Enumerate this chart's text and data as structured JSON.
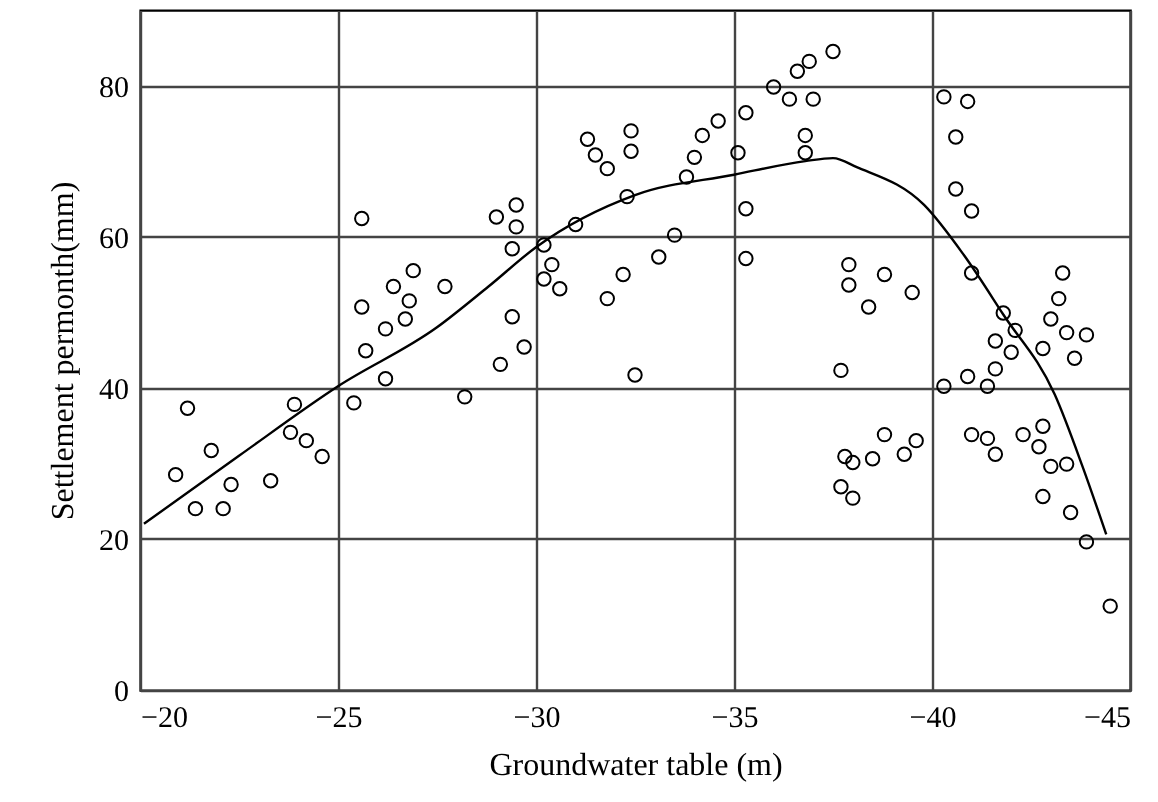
{
  "chart_data": {
    "type": "scatter",
    "xlabel": "Groundwater table (m)",
    "ylabel": "Settlement permonth(mm)",
    "xlim": [
      -20,
      -45
    ],
    "xticks": [
      -20,
      -25,
      -30,
      -35,
      -40,
      -45
    ],
    "ylim": [
      0,
      90
    ],
    "yticks": [
      0,
      20,
      40,
      60,
      80
    ],
    "grid": true,
    "series": [
      {
        "color": "#000000",
        "marker": "circle",
        "x": [
          -20.9,
          -21.2,
          -21.8,
          -21.4,
          -22.1,
          -22.3,
          -23.3,
          -23.9,
          -23.8,
          -24.2,
          -24.6,
          -25.4,
          -25.6,
          -25.6,
          -25.7,
          -26.2,
          -26.2,
          -26.4,
          -26.7,
          -26.8,
          -26.9,
          -27.7,
          -28.2,
          -29.1,
          -29.7,
          -29.4,
          -29.0,
          -29.5,
          -29.5,
          -29.4,
          -30.2,
          -30.4,
          -30.2,
          -30.6,
          -31.0,
          -31.3,
          -31.5,
          -31.8,
          -32.4,
          -32.4,
          -32.3,
          -31.8,
          -32.2,
          -32.5,
          -33.1,
          -33.5,
          -33.8,
          -34.0,
          -34.2,
          -34.6,
          -35.3,
          -35.1,
          -35.3,
          -35.3,
          -36.0,
          -36.4,
          -36.6,
          -36.8,
          -36.8,
          -36.9,
          -37.5,
          -37.0,
          -37.9,
          -37.9,
          -38.8,
          -39.5,
          -38.4,
          -37.7,
          -37.8,
          -38.0,
          -38.5,
          -38.8,
          -39.3,
          -39.6,
          -37.7,
          -38.0,
          -40.3,
          -40.9,
          -40.6,
          -40.6,
          -41.0,
          -41.0,
          -41.8,
          -42.1,
          -41.6,
          -42.0,
          -41.6,
          -40.9,
          -41.4,
          -40.3,
          -43.3,
          -43.2,
          -43.0,
          -43.4,
          -43.9,
          -42.8,
          -43.6,
          -41.0,
          -41.4,
          -41.6,
          -42.3,
          -42.8,
          -42.7,
          -43.0,
          -43.4,
          -42.8,
          -43.5,
          -43.9,
          -44.5
        ],
        "values": [
          28.5,
          37.3,
          31.7,
          24.0,
          24.0,
          27.2,
          27.7,
          37.8,
          34.1,
          33.0,
          30.9,
          38.0,
          62.4,
          50.7,
          44.9,
          41.2,
          47.8,
          53.4,
          49.1,
          51.5,
          55.5,
          53.4,
          38.8,
          43.1,
          45.4,
          49.4,
          62.6,
          64.2,
          61.3,
          58.4,
          58.9,
          56.3,
          54.4,
          53.1,
          61.6,
          72.9,
          70.8,
          69.0,
          74.0,
          71.3,
          65.3,
          51.8,
          55.0,
          41.7,
          57.3,
          60.2,
          67.9,
          70.5,
          73.4,
          75.3,
          76.4,
          71.1,
          63.7,
          57.1,
          79.8,
          78.2,
          81.9,
          71.1,
          73.4,
          83.2,
          84.5,
          78.2,
          56.3,
          53.6,
          55.0,
          52.6,
          50.7,
          42.3,
          30.9,
          30.1,
          30.6,
          33.8,
          31.2,
          33.0,
          26.9,
          25.4,
          78.5,
          77.9,
          73.2,
          66.3,
          63.4,
          55.2,
          49.9,
          47.6,
          46.2,
          44.7,
          42.5,
          41.5,
          40.2,
          40.2,
          55.2,
          51.8,
          49.1,
          47.3,
          47.0,
          45.2,
          43.9,
          33.8,
          33.3,
          31.2,
          33.8,
          34.9,
          32.2,
          29.6,
          29.9,
          25.6,
          23.5,
          19.6,
          11.1
        ]
      },
      {
        "type": "line",
        "color": "#000000",
        "marker": "none",
        "line_style": "solid",
        "x": [
          -20.1,
          -22.5,
          -25,
          -27.5,
          -28.8,
          -30,
          -32.5,
          -35,
          -36.8,
          -37.5,
          -38.1,
          -39.8,
          -40.8,
          -41.8,
          -43.1,
          -43.8,
          -44.4
        ],
        "values": [
          22,
          31,
          40.2,
          48,
          53.4,
          58.6,
          65.5,
          68.2,
          70,
          70.4,
          69.2,
          64.2,
          57.6,
          49.7,
          39.1,
          29.6,
          20.6
        ]
      }
    ]
  }
}
